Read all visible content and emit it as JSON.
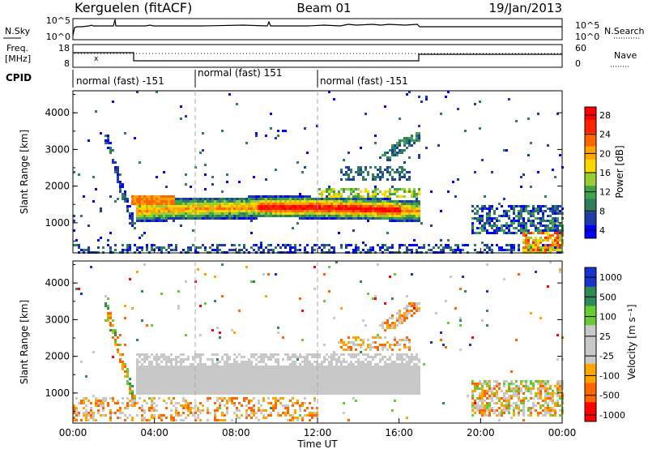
{
  "header": {
    "station": "Kerguelen (fitACF)",
    "beam": "Beam 01",
    "date": "19/Jan/2013"
  },
  "sky_panel": {
    "left_label": "N.Sky",
    "right_label": "N.Search",
    "left_ticks": [
      "10^5",
      "10^0"
    ],
    "right_ticks": [
      "10^5",
      "10^0"
    ]
  },
  "freq_panel": {
    "left_label_1": "Freq.",
    "left_label_2": "[MHz]",
    "right_label": "Nave",
    "left_ticks": [
      "18",
      "8"
    ],
    "right_ticks": [
      "60",
      "0"
    ]
  },
  "cpid_panel": {
    "label": "CPID",
    "segments": [
      {
        "text": "normal (fast) -151",
        "start_hour": 0
      },
      {
        "text": "normal (fast) 151",
        "start_hour": 6
      },
      {
        "text": "normal (fast) -151",
        "start_hour": 12
      }
    ]
  },
  "chart_data": [
    {
      "type": "heatmap",
      "name": "power",
      "ylabel": "Slant Range [km]",
      "ylim": [
        180,
        4600
      ],
      "xlim": [
        0,
        24
      ],
      "yticks": [
        "1000",
        "2000",
        "3000",
        "4000"
      ],
      "colorbar_label": "Power [dB]",
      "colorbar_ticks": [
        "4",
        "8",
        "12",
        "16",
        "20",
        "24",
        "28"
      ],
      "colors": [
        "#0000ff",
        "#1e3ca8",
        "#2e7d5f",
        "#3fa34d",
        "#9acd32",
        "#ffd700",
        "#ffa500",
        "#ff6600",
        "#ff2200",
        "#ff0000"
      ]
    },
    {
      "type": "heatmap",
      "name": "velocity",
      "ylabel": "Slant Range [km]",
      "ylim": [
        180,
        4600
      ],
      "xlim": [
        0,
        24
      ],
      "yticks": [
        "1000",
        "2000",
        "3000",
        "4000"
      ],
      "colorbar_label": "Velocity [m s⁻¹]",
      "colorbar_ticks": [
        "1000",
        "500",
        "100",
        "25",
        "-25",
        "-100",
        "-500",
        "-1000"
      ],
      "colors": [
        "#1a33cc",
        "#2e8b57",
        "#66cc33",
        "#c8c8c8",
        "#c8c8c8",
        "#ffa500",
        "#ff6600",
        "#ff0000"
      ],
      "xlabel": "Time UT",
      "xticks": [
        "00:00",
        "04:00",
        "08:00",
        "12:00",
        "16:00",
        "20:00",
        "00:00"
      ]
    }
  ]
}
